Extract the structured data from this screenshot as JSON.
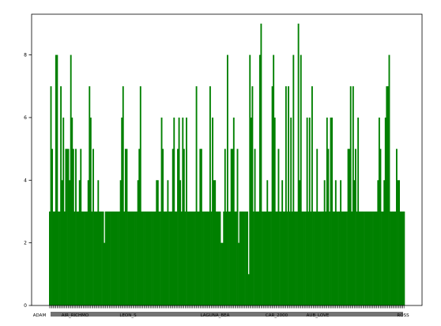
{
  "chart_data": {
    "type": "bar",
    "title": "",
    "xlabel": "",
    "ylabel": "",
    "bar_color": "#008000",
    "grid": false,
    "legend": "none",
    "ylim": [
      0,
      9.3
    ],
    "y_ticks": [
      0,
      2,
      4,
      6,
      8
    ],
    "y_tick_labels": [
      "0",
      "2",
      "4",
      "6",
      "8"
    ],
    "x_tick_labels_visible": [
      "ADAM",
      "AIR_RICHMO",
      "LEON_S",
      "LAGUNA_BEA",
      "CAR_2000",
      "AUB_LOVE",
      "ROSS"
    ],
    "values": [
      3,
      7,
      5,
      3,
      3,
      8,
      8,
      3,
      3,
      7,
      4,
      6,
      3,
      5,
      5,
      5,
      4,
      8,
      6,
      5,
      3,
      5,
      3,
      3,
      4,
      5,
      3,
      3,
      3,
      3,
      3,
      4,
      7,
      6,
      3,
      5,
      3,
      3,
      3,
      4,
      3,
      3,
      3,
      3,
      2,
      3,
      3,
      3,
      3,
      3,
      3,
      3,
      3,
      3,
      3,
      3,
      3,
      4,
      6,
      7,
      3,
      5,
      5,
      3,
      3,
      3,
      3,
      3,
      3,
      3,
      3,
      4,
      5,
      7,
      3,
      3,
      3,
      3,
      3,
      3,
      3,
      3,
      3,
      3,
      3,
      3,
      4,
      4,
      3,
      3,
      6,
      5,
      3,
      3,
      3,
      4,
      3,
      3,
      3,
      5,
      6,
      3,
      3,
      5,
      6,
      4,
      3,
      6,
      5,
      3,
      6,
      3,
      3,
      3,
      3,
      3,
      3,
      3,
      7,
      3,
      3,
      5,
      5,
      3,
      3,
      3,
      3,
      3,
      3,
      7,
      3,
      6,
      4,
      4,
      3,
      3,
      3,
      3,
      2,
      2,
      3,
      5,
      3,
      8,
      3,
      3,
      5,
      5,
      6,
      3,
      3,
      5,
      2,
      3,
      3,
      3,
      3,
      3,
      3,
      3,
      1,
      8,
      6,
      7,
      3,
      5,
      3,
      3,
      3,
      8,
      9,
      3,
      3,
      3,
      3,
      4,
      3,
      3,
      3,
      7,
      8,
      6,
      3,
      3,
      5,
      3,
      3,
      4,
      3,
      3,
      7,
      3,
      7,
      3,
      6,
      3,
      8,
      3,
      3,
      3,
      9,
      4,
      8,
      3,
      3,
      3,
      3,
      6,
      3,
      6,
      3,
      7,
      3,
      3,
      3,
      5,
      3,
      3,
      3,
      3,
      3,
      4,
      3,
      6,
      5,
      3,
      6,
      6,
      3,
      3,
      4,
      3,
      3,
      3,
      4,
      3,
      3,
      3,
      3,
      3,
      5,
      5,
      7,
      3,
      7,
      4,
      5,
      3,
      6,
      3,
      3,
      3,
      3,
      3,
      3,
      3,
      3,
      3,
      3,
      3,
      3,
      3,
      3,
      3,
      4,
      6,
      5,
      3,
      3,
      4,
      6,
      7,
      7,
      8,
      3,
      3,
      3,
      3,
      3,
      5,
      4,
      4,
      3,
      3,
      3,
      3
    ]
  }
}
